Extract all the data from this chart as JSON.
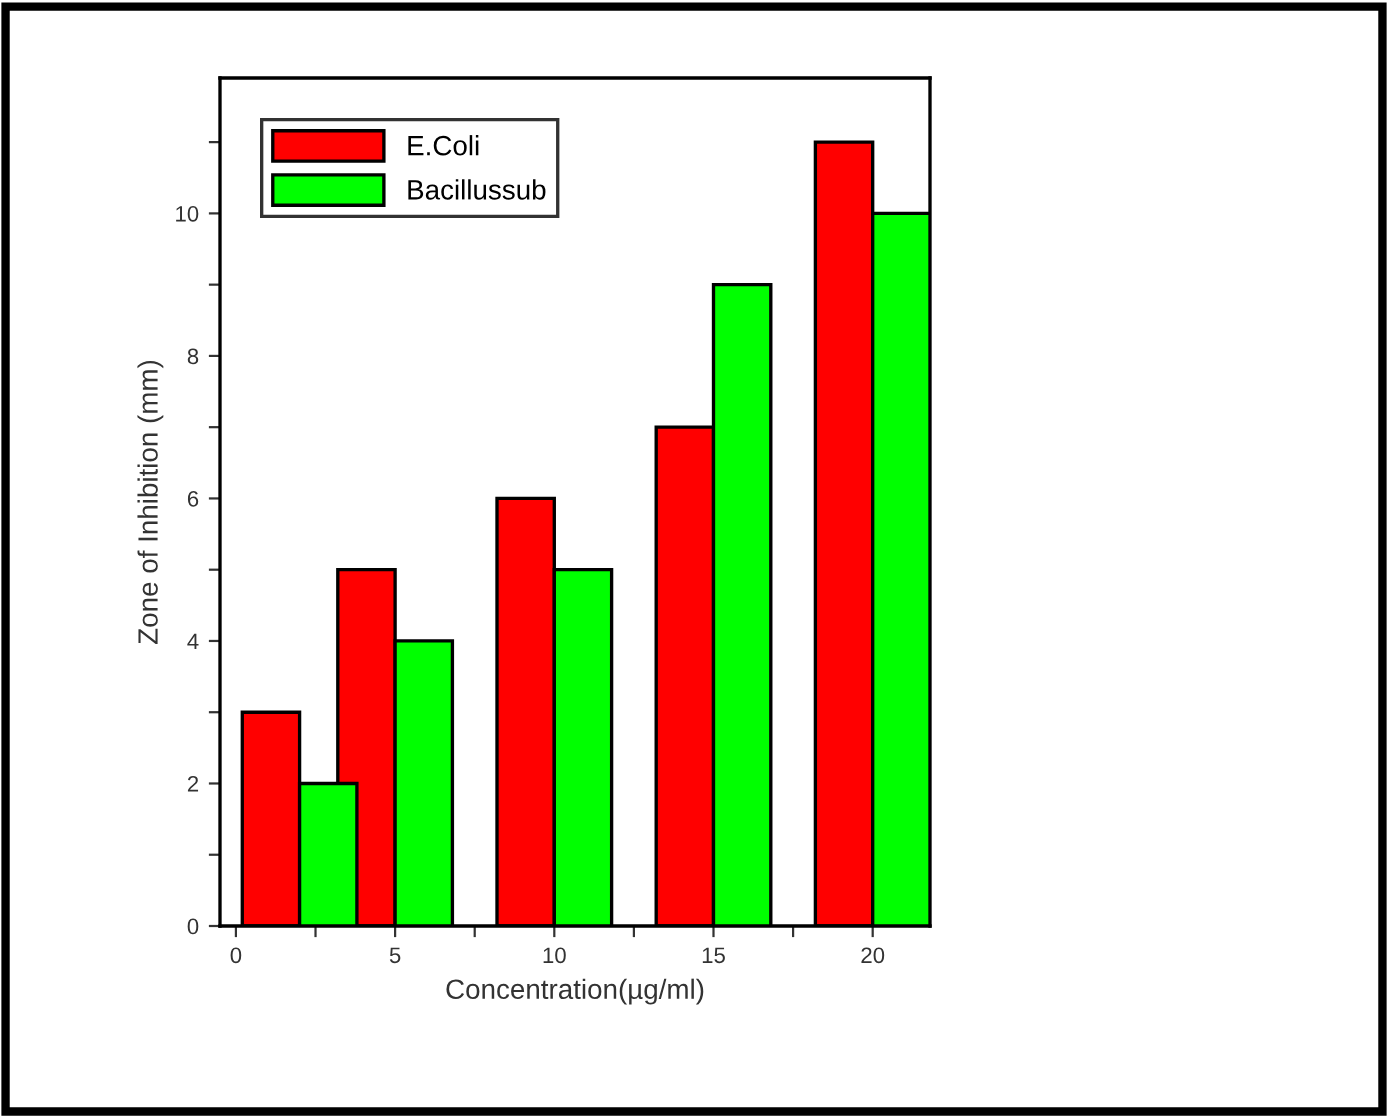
{
  "chart_data": {
    "type": "bar",
    "xlabel": "Concentration(µg/ml)",
    "ylabel": "Zone of Inhibition (mm)",
    "x": [
      2,
      5,
      10,
      15,
      20
    ],
    "series": [
      {
        "name": "E.Coli",
        "color": "#ff0000",
        "values": [
          3,
          5,
          6,
          7,
          11
        ]
      },
      {
        "name": "Bacillussub",
        "color": "#00ff00",
        "values": [
          2,
          4,
          5,
          9,
          10
        ]
      }
    ],
    "xlim": [
      -0.5,
      21.8
    ],
    "ylim": [
      0,
      11.9
    ],
    "xticks": [
      0,
      {
        "value": 2.5,
        "label": null
      },
      5,
      {
        "value": 7.5,
        "label": null
      },
      10,
      {
        "value": 12.5,
        "label": null
      },
      15,
      {
        "value": 17.5,
        "label": null
      },
      20
    ],
    "yticks": [
      0,
      {
        "value": 1,
        "label": null
      },
      2,
      {
        "value": 3,
        "label": null
      },
      4,
      {
        "value": 5,
        "label": null
      },
      6,
      {
        "value": 7,
        "label": null
      },
      8,
      {
        "value": 9,
        "label": null
      },
      10,
      {
        "value": 11,
        "label": null
      }
    ],
    "grid": false,
    "legend": "top left"
  }
}
